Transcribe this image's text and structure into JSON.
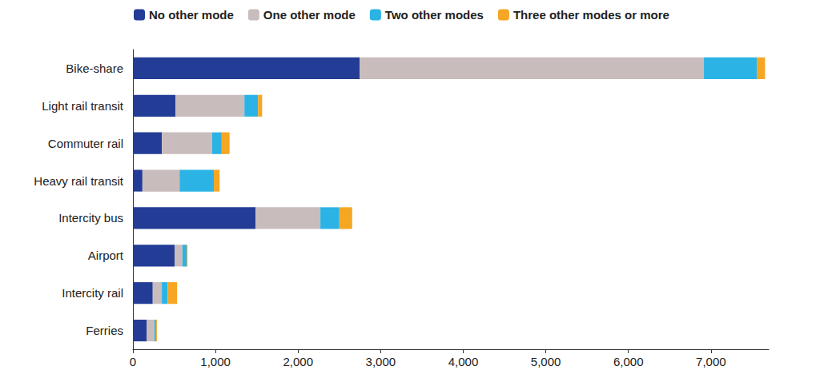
{
  "chart_data": {
    "type": "bar",
    "orientation": "horizontal",
    "stacked": true,
    "grid": false,
    "legend": "top",
    "categories": [
      "Bike-share",
      "Light rail transit",
      "Commuter rail",
      "Heavy rail transit",
      "Intercity bus",
      "Airport",
      "Intercity rail",
      "Ferries"
    ],
    "series": [
      {
        "name": "No other mode",
        "color": "#233d96",
        "values": [
          2745,
          515,
          350,
          115,
          1485,
          505,
          240,
          165
        ]
      },
      {
        "name": "One other mode",
        "color": "#c9bcbc",
        "values": [
          4170,
          835,
          610,
          450,
          785,
          95,
          110,
          95
        ]
      },
      {
        "name": "Two other modes",
        "color": "#2bb3e6",
        "values": [
          640,
          165,
          115,
          415,
          230,
          50,
          70,
          20
        ]
      },
      {
        "name": "Three other modes or more",
        "color": "#f5a623",
        "values": [
          100,
          50,
          95,
          70,
          155,
          10,
          115,
          10
        ]
      }
    ],
    "xlim": [
      0,
      7700
    ],
    "xticks": [
      0,
      {
        "value": 1000,
        "label": "1,000"
      },
      {
        "value": 2000,
        "label": "2,000"
      },
      {
        "value": 3000,
        "label": "3,000"
      },
      {
        "value": 4000,
        "label": "4,000"
      },
      {
        "value": 5000,
        "label": "5,000"
      },
      {
        "value": 6000,
        "label": "6,000"
      },
      {
        "value": 7000,
        "label": "7,000"
      }
    ]
  }
}
